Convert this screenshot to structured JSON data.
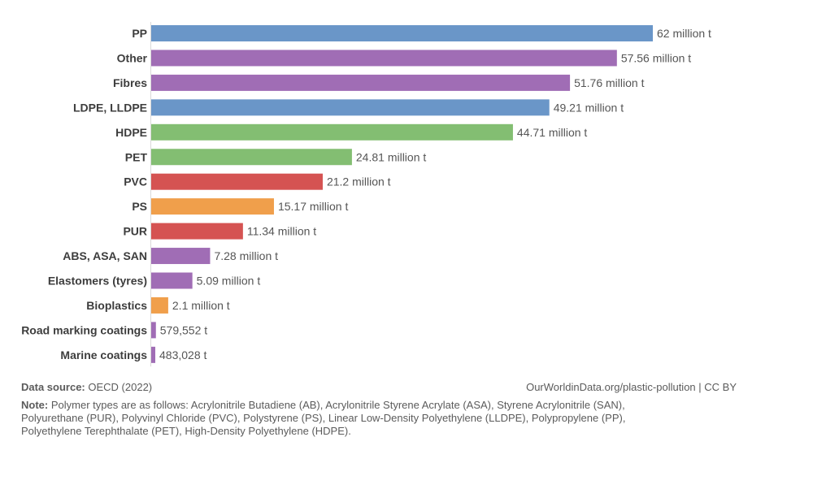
{
  "chart_data": {
    "type": "bar",
    "orientation": "horizontal",
    "categories": [
      "PP",
      "Other",
      "Fibres",
      "LDPE, LLDPE",
      "HDPE",
      "PET",
      "PVC",
      "PS",
      "PUR",
      "ABS, ASA, SAN",
      "Elastomers (tyres)",
      "Bioplastics",
      "Road marking coatings",
      "Marine coatings"
    ],
    "values": [
      62000000,
      57560000,
      51760000,
      49210000,
      44710000,
      24810000,
      21200000,
      15170000,
      11340000,
      7280000,
      5090000,
      2100000,
      579552,
      483028
    ],
    "value_labels": [
      "62 million t",
      "57.56 million t",
      "51.76 million t",
      "49.21 million t",
      "44.71 million t",
      "24.81 million t",
      "21.2 million t",
      "15.17 million t",
      "11.34 million t",
      "7.28 million t",
      "5.09 million t",
      "2.1 million t",
      "579,552 t",
      "483,028 t"
    ],
    "colors": [
      "#6a96c8",
      "#a06db5",
      "#a06db5",
      "#6a96c8",
      "#83be72",
      "#83be72",
      "#d55352",
      "#f09f4b",
      "#d55352",
      "#a06db5",
      "#a06db5",
      "#f09f4b",
      "#a06db5",
      "#a06db5"
    ],
    "xlim": [
      0,
      62000000
    ],
    "grid": false,
    "legend": "none"
  },
  "footer": {
    "source_label": "Data source:",
    "source_text": "OECD (2022)",
    "attribution": "OurWorldinData.org/plastic-pollution | CC BY",
    "note_label": "Note:",
    "note_text": "Polymer types are as follows: Acrylonitrile Butadiene (AB), Acrylonitrile Styrene Acrylate (ASA), Styrene Acrylonitrile (SAN), Polyurethane (PUR), Polyvinyl Chloride (PVC), Polystyrene (PS), Linear Low-Density Polyethylene (LLDPE), Polypropylene (PP), Polyethylene Terephthalate (PET), High-Density Polyethylene (HDPE)."
  }
}
